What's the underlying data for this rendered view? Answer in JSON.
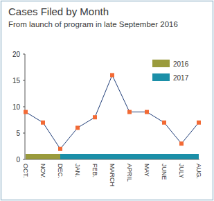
{
  "chart_data": {
    "type": "line",
    "title": "Cases Filed by Month",
    "subtitle": "From launch of program in late September 2016",
    "categories": [
      "OCT.",
      "NOV.",
      "DEC.",
      "JAN.",
      "FEB.",
      "MARCH",
      "APRIL",
      "MAY",
      "JUNE",
      "JULY",
      "AUG."
    ],
    "values": [
      9,
      7,
      2,
      6,
      8,
      16,
      9,
      9,
      7,
      3,
      7
    ],
    "color": "#1f3d78",
    "marker": "square",
    "ylim": [
      0,
      20
    ],
    "yticks": [
      0,
      5,
      10,
      15,
      20
    ],
    "grid": false,
    "legend": "top-right",
    "years": [
      {
        "name": "2016",
        "color": "#9a9b3c",
        "months": 3
      },
      {
        "name": "2017",
        "color": "#1b8fa8",
        "months": 8
      }
    ]
  }
}
